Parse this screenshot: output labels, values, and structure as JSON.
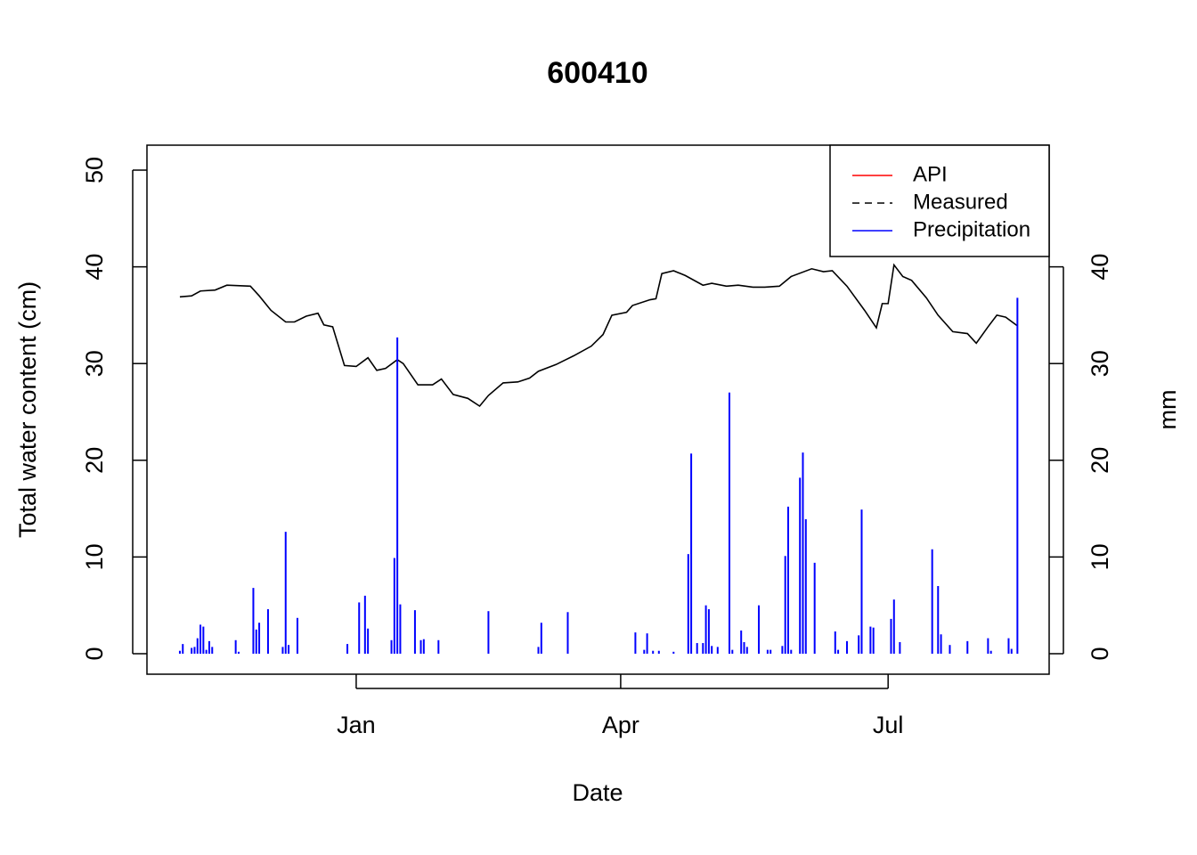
{
  "chart_data": {
    "type": "line-bar",
    "title": "600410",
    "xlabel": "Date",
    "ylabel": "Total water content (cm)",
    "y2label": "mm",
    "xlim": [
      -71.2,
      235.8
    ],
    "xticks": [
      {
        "value": 0,
        "label": "Jan"
      },
      {
        "value": 90,
        "label": "Apr"
      },
      {
        "value": 181,
        "label": "Jul"
      }
    ],
    "ylim": [
      -2.12,
      52.58
    ],
    "yticks": [
      0,
      10,
      20,
      30,
      40,
      50
    ],
    "y2lim": [
      -2.12,
      52.58
    ],
    "y2ticks": [
      0,
      10,
      20,
      30,
      40
    ],
    "legend_position": "top-right",
    "legend": [
      {
        "name": "API",
        "color": "#ff0000",
        "dashed": false
      },
      {
        "name": "Measured",
        "color": "#000000",
        "dashed": true
      },
      {
        "name": "Precipitation",
        "color": "#0000ff",
        "dashed": false
      }
    ],
    "series": [
      {
        "kind": "line",
        "color": "#000000",
        "x": [
          -60,
          -56,
          -53,
          -48,
          -44,
          -36,
          -33,
          -29,
          -24,
          -21,
          -17,
          -13,
          -11,
          -8,
          -4,
          0,
          4,
          7,
          10,
          14,
          16,
          21,
          26,
          29,
          33,
          38,
          42,
          45,
          50,
          55,
          59,
          62,
          68,
          74,
          80,
          84,
          87,
          92,
          94,
          100,
          102,
          104,
          108,
          112,
          118,
          121,
          126,
          130,
          135,
          139,
          144,
          148,
          155,
          159,
          162,
          167,
          173,
          177,
          179,
          181,
          183,
          186,
          189,
          194,
          198,
          203,
          208,
          211,
          215,
          218,
          221,
          225
        ],
        "values": [
          36.9,
          37.0,
          37.5,
          37.6,
          38.1,
          38.0,
          37.0,
          35.5,
          34.3,
          34.3,
          34.9,
          35.2,
          34.0,
          33.8,
          29.8,
          29.7,
          30.6,
          29.3,
          29.5,
          30.4,
          30.0,
          27.8,
          27.8,
          28.4,
          26.8,
          26.4,
          25.6,
          26.7,
          28.0,
          28.1,
          28.5,
          29.2,
          29.9,
          30.8,
          31.8,
          33.0,
          35.0,
          35.3,
          36.0,
          36.6,
          36.7,
          39.3,
          39.6,
          39.1,
          38.1,
          38.3,
          38.0,
          38.1,
          37.9,
          37.9,
          38.0,
          39.0,
          39.8,
          39.5,
          39.6,
          38.0,
          35.5,
          33.7,
          36.2,
          36.2,
          40.2,
          39.0,
          38.6,
          36.8,
          35.0,
          33.3,
          33.1,
          32.1,
          33.8,
          35.0,
          34.8,
          33.9
        ]
      },
      {
        "kind": "bar",
        "color": "#0000ff",
        "axis": "y2",
        "x": [
          -60,
          -59,
          -56,
          -55,
          -54,
          -53,
          -52,
          -51,
          -50,
          -49,
          -41,
          -40,
          -35,
          -34,
          -33,
          -30,
          -25,
          -24,
          -23,
          -20,
          -3,
          1,
          3,
          4,
          12,
          13,
          14,
          15,
          20,
          22,
          23,
          28,
          45,
          62,
          63,
          72,
          95,
          98,
          99,
          101,
          103,
          108,
          113,
          114,
          116,
          118,
          119,
          120,
          121,
          123,
          127,
          128,
          131,
          132,
          133,
          137,
          140,
          141,
          145,
          146,
          147,
          148,
          151,
          152,
          153,
          156,
          163,
          164,
          167,
          171,
          172,
          175,
          176,
          182,
          183,
          185,
          196,
          198,
          199,
          202,
          208,
          215,
          216,
          222,
          223,
          225
        ],
        "values": [
          0.3,
          1.0,
          0.6,
          0.7,
          1.6,
          3.0,
          2.8,
          0.4,
          1.3,
          0.7,
          1.4,
          0.2,
          6.8,
          2.5,
          3.2,
          4.6,
          0.7,
          12.6,
          0.9,
          3.7,
          1.0,
          5.3,
          6.0,
          2.6,
          1.4,
          9.9,
          32.7,
          5.1,
          4.5,
          1.4,
          1.5,
          1.4,
          4.4,
          0.7,
          3.2,
          4.3,
          2.2,
          0.4,
          2.1,
          0.3,
          0.3,
          0.2,
          10.3,
          20.7,
          1.1,
          1.1,
          5.0,
          4.6,
          0.8,
          0.7,
          27.0,
          0.4,
          2.4,
          1.2,
          0.7,
          5.0,
          0.4,
          0.4,
          0.8,
          10.1,
          15.2,
          0.4,
          18.2,
          20.8,
          13.9,
          9.4,
          2.3,
          0.4,
          1.3,
          1.9,
          14.9,
          2.8,
          2.7,
          3.6,
          5.6,
          1.2,
          10.8,
          7.0,
          2.0,
          0.9,
          1.3,
          1.6,
          0.3,
          1.6,
          0.5,
          36.8
        ]
      }
    ]
  }
}
